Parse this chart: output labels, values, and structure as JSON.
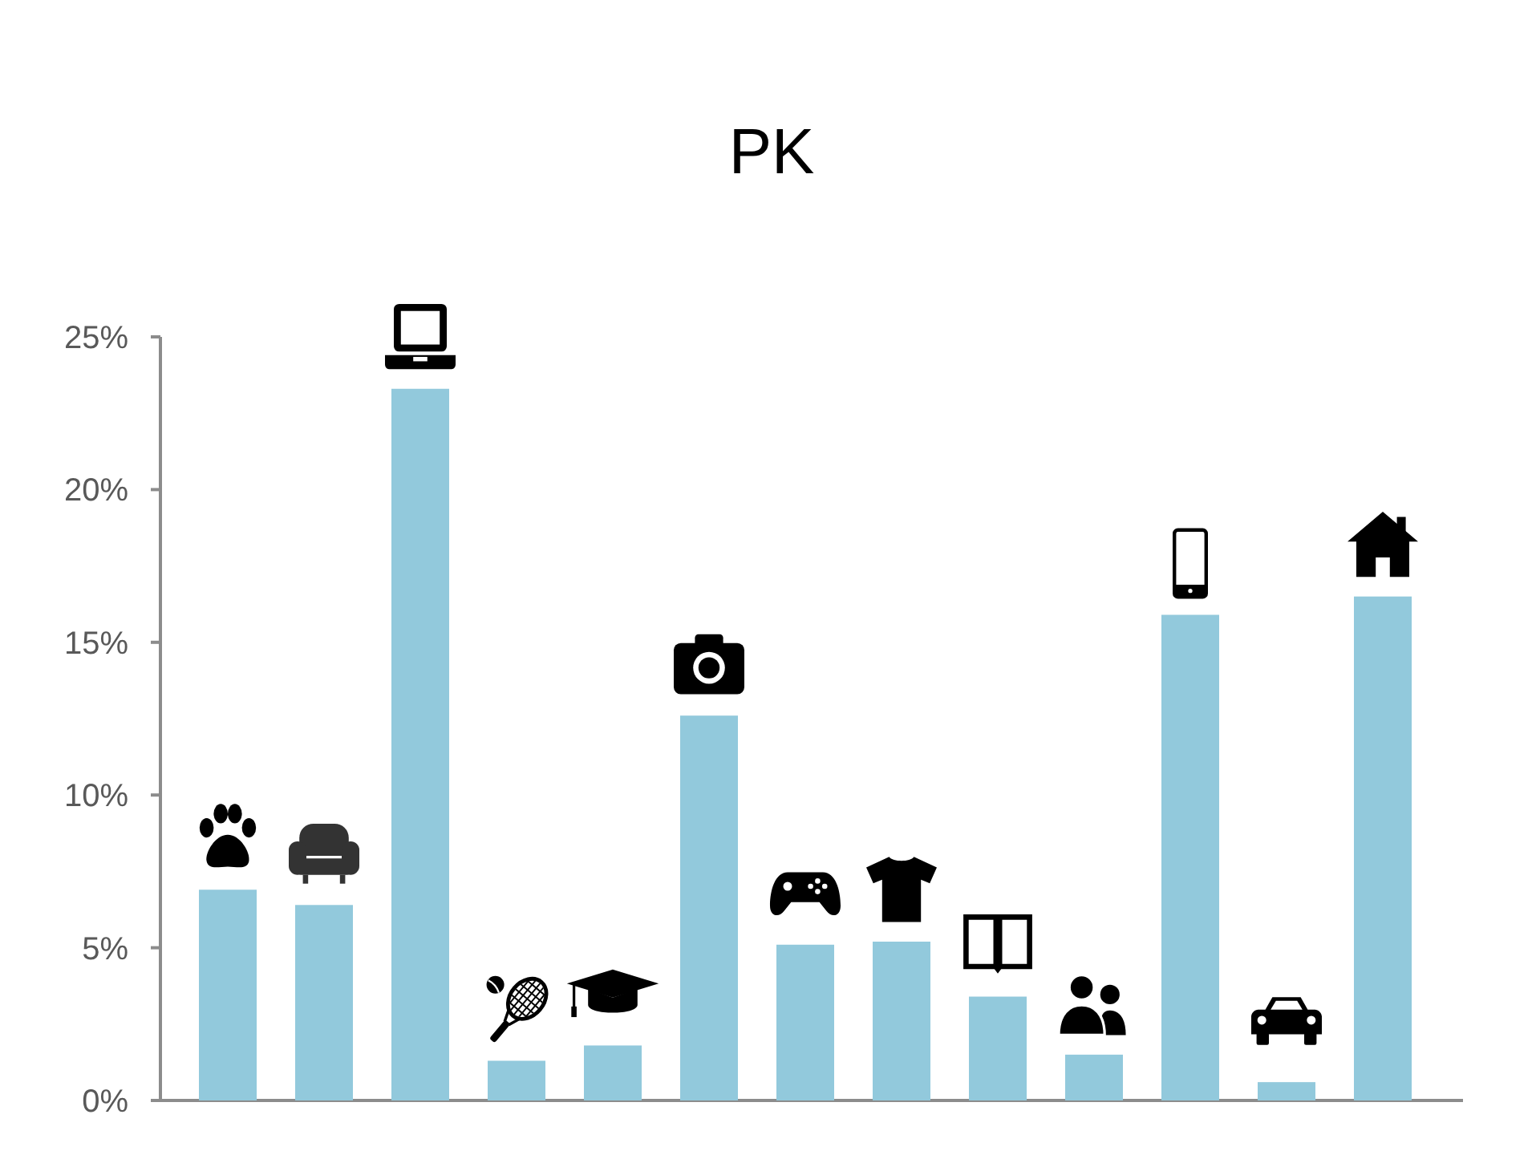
{
  "chart_data": {
    "type": "bar",
    "title": "PK",
    "categories": [
      null,
      null,
      null,
      null,
      null,
      null,
      null,
      null,
      null,
      null,
      null,
      null,
      null
    ],
    "values": [
      6.9,
      6.4,
      23.3,
      1.3,
      1.8,
      12.6,
      5.1,
      5.2,
      3.4,
      1.5,
      15.9,
      0.6,
      16.5
    ],
    "color": "#92c9dc",
    "ylim": [
      0,
      25
    ],
    "yticks": [
      {
        "value": 0,
        "label": "0%"
      },
      {
        "value": 5,
        "label": "5%"
      },
      {
        "value": 10,
        "label": "10%"
      },
      {
        "value": 15,
        "label": "15%"
      },
      {
        "value": 20,
        "label": "20%"
      },
      {
        "value": 25,
        "label": "25%"
      }
    ]
  }
}
